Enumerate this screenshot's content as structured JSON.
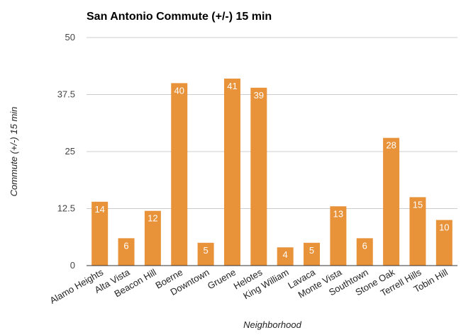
{
  "chart_data": {
    "type": "bar",
    "title": "San Antonio Commute (+/-) 15 min",
    "xlabel": "Neighborhood",
    "ylabel": "Commute (+/-) 15 min",
    "categories": [
      "Alamo Heights",
      "Alta Vista",
      "Beacon Hill",
      "Boerne",
      "Downtown",
      "Gruene",
      "Helotes",
      "King William",
      "Lavaca",
      "Monte Vista",
      "Southtown",
      "Stone Oak",
      "Terrell Hills",
      "Tobin Hill"
    ],
    "values": [
      14,
      6,
      12,
      40,
      5,
      41,
      39,
      4,
      5,
      13,
      6,
      28,
      15,
      10
    ],
    "ylim": [
      0,
      50
    ],
    "yticks": [
      0,
      12.5,
      25,
      37.5,
      50
    ],
    "ytick_labels": [
      "0",
      "12.5",
      "25",
      "37.5",
      "50"
    ],
    "grid": true,
    "legend": "none",
    "bar_color": "#e8923a",
    "data_labels": true
  }
}
